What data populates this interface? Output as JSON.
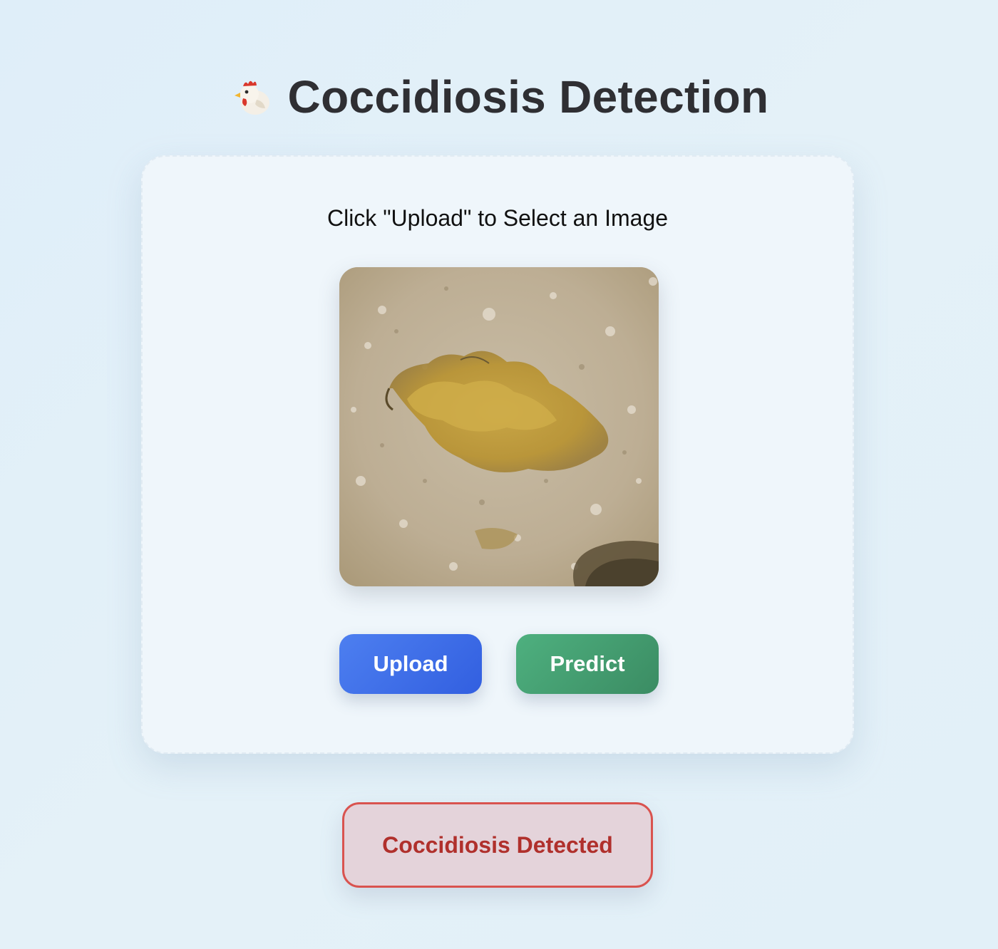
{
  "header": {
    "logo_icon": "rooster-icon",
    "title": "Coccidiosis Detection"
  },
  "card": {
    "instruction": "Click \"Upload\" to Select an Image",
    "preview_image": "uploaded-droppings-photo",
    "upload_label": "Upload",
    "predict_label": "Predict"
  },
  "result": {
    "text": "Coccidiosis Detected",
    "status_color": "#d9534f"
  },
  "colors": {
    "upload_button": "#3d6ee9",
    "predict_button": "#45a071",
    "title_text": "#2f2f33",
    "result_text": "#b0302c"
  }
}
